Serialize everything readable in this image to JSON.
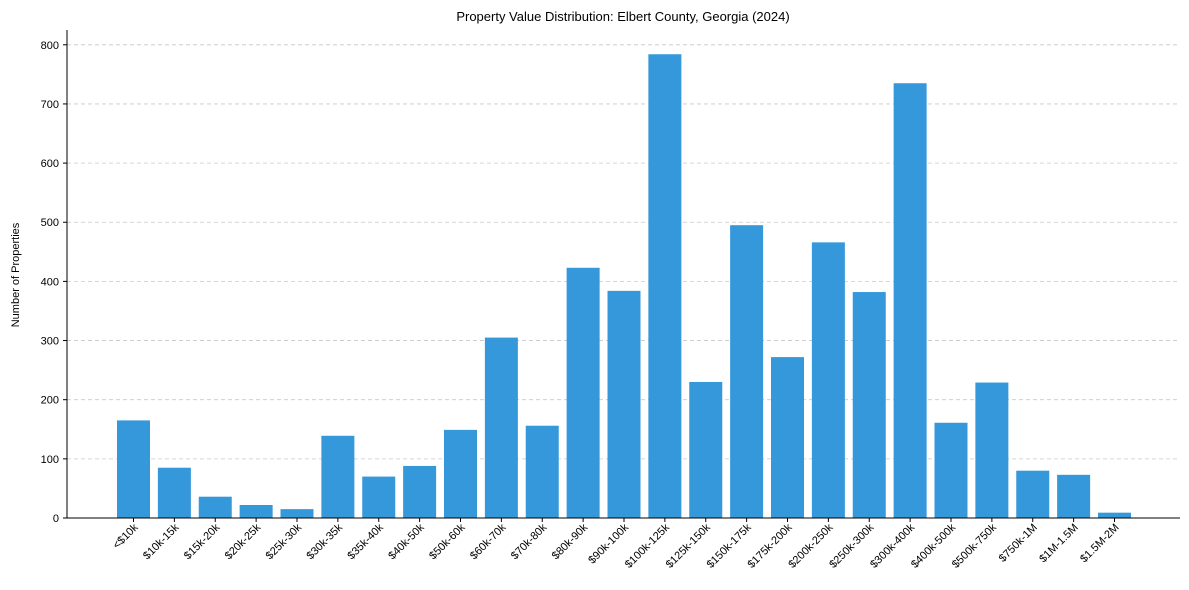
{
  "chart_data": {
    "type": "bar",
    "title": "Property Value Distribution: Elbert County, Georgia (2024)",
    "xlabel": "",
    "ylabel": "Number of Properties",
    "ylim": [
      0,
      825
    ],
    "yticks": [
      0,
      100,
      200,
      300,
      400,
      500,
      600,
      700,
      800
    ],
    "grid": true,
    "bar_color": "#3498db",
    "categories": [
      "<$10k",
      "$10k-15k",
      "$15k-20k",
      "$20k-25k",
      "$25k-30k",
      "$30k-35k",
      "$35k-40k",
      "$40k-50k",
      "$50k-60k",
      "$60k-70k",
      "$70k-80k",
      "$80k-90k",
      "$90k-100k",
      "$100k-125k",
      "$125k-150k",
      "$150k-175k",
      "$175k-200k",
      "$200k-250k",
      "$250k-300k",
      "$300k-400k",
      "$400k-500k",
      "$500k-750k",
      "$750k-1M",
      "$1M-1.5M",
      "$1.5M-2M"
    ],
    "values": [
      165,
      85,
      36,
      22,
      15,
      139,
      70,
      88,
      149,
      305,
      156,
      423,
      384,
      784,
      230,
      495,
      272,
      466,
      382,
      735,
      161,
      229,
      80,
      73,
      9
    ]
  }
}
